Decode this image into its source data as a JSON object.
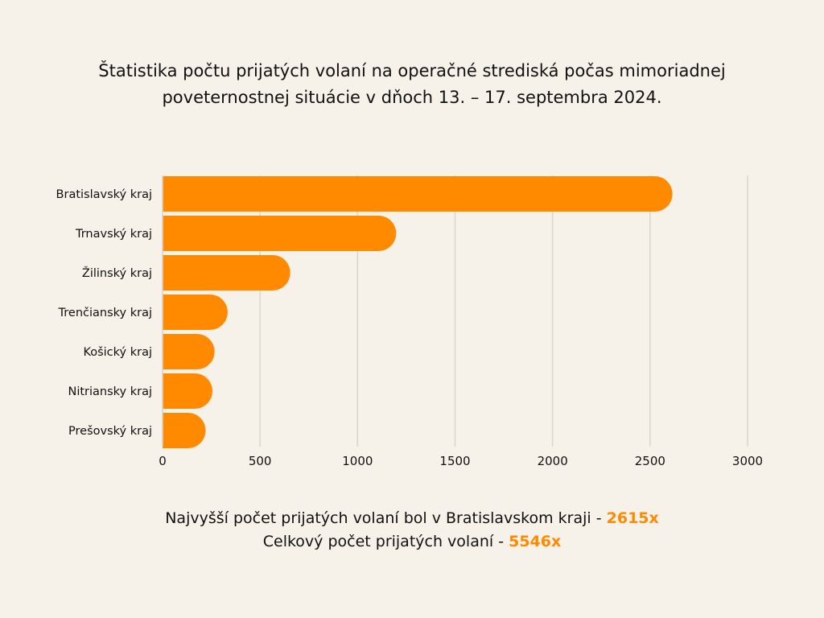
{
  "chart_data": {
    "type": "bar",
    "orientation": "horizontal",
    "title_lines": [
      "Štatistika počtu prijatých volaní na operačné strediská počas mimoriadnej",
      "poveternostnej situácie v dňoch 13. – 17. septembra 2024."
    ],
    "categories": [
      "Bratislavský kraj",
      "Trnavský kraj",
      "Žilinský kraj",
      "Trenčiansky kraj",
      "Košický kraj",
      "Nitriansky kraj",
      "Prešovský kraj"
    ],
    "values": [
      2615,
      1198,
      655,
      334,
      267,
      256,
      221
    ],
    "xlim": [
      0,
      3000
    ],
    "xticks": [
      "0",
      "500",
      "1000",
      "1500",
      "2000",
      "2500",
      "3000"
    ],
    "xtick_values": [
      0,
      500,
      1000,
      1500,
      2000,
      2500,
      3000
    ],
    "grid": "vertical",
    "bar_color": "#ff8a00",
    "grid_color": "#d9d5cf",
    "xlabel": "",
    "ylabel": ""
  },
  "footer": {
    "line1_text": "Najvyšší počet prijatých volaní bol v Bratislavskom kraji - ",
    "line1_value": "2615x",
    "line2_text": "Celkový počet prijatých volaní - ",
    "line2_value": "5546x"
  }
}
